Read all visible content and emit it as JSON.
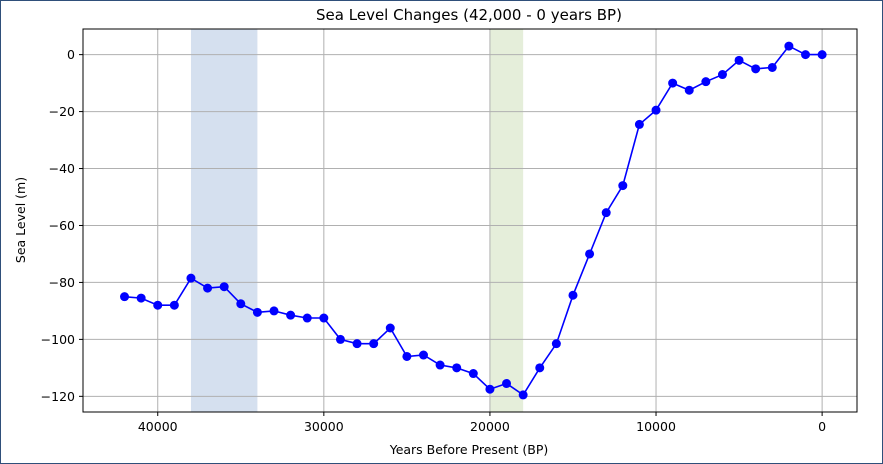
{
  "chart_data": {
    "type": "line",
    "title": "Sea Level Changes (42,000 - 0 years BP)",
    "xlabel": "Years Before Present (BP)",
    "ylabel": "Sea Level (m)",
    "x_axis_inverted": true,
    "xlim": [
      44500,
      -2100
    ],
    "ylim": [
      -125.5,
      9
    ],
    "xticks": [
      40000,
      30000,
      20000,
      10000,
      0
    ],
    "yticks": [
      0,
      -20,
      -40,
      -60,
      -80,
      -100,
      -120
    ],
    "grid": true,
    "legend": "none",
    "shaded_regions": [
      {
        "x_start": 38000,
        "x_end": 34000,
        "color": "#d5e0ef"
      },
      {
        "x_start": 20000,
        "x_end": 18000,
        "color": "#e5eeda"
      }
    ],
    "series": [
      {
        "color": "#0000ff",
        "marker": "circle",
        "x": [
          42000,
          41000,
          40000,
          39000,
          38000,
          37000,
          36000,
          35000,
          34000,
          33000,
          32000,
          31000,
          30000,
          29000,
          28000,
          27000,
          26000,
          25000,
          24000,
          23000,
          22000,
          21000,
          20000,
          19000,
          18000,
          17000,
          16000,
          15000,
          14000,
          13000,
          12000,
          11000,
          10000,
          9000,
          8000,
          7000,
          6000,
          5000,
          4000,
          3000,
          2000,
          1000,
          0
        ],
        "y": [
          -85,
          -85.5,
          -88,
          -88,
          -78.5,
          -82,
          -81.5,
          -87.5,
          -90.5,
          -90,
          -91.5,
          -92.5,
          -92.5,
          -100,
          -101.5,
          -101.5,
          -96,
          -106,
          -105.5,
          -109,
          -110,
          -112,
          -117.5,
          -115.5,
          -119.5,
          -110,
          -101.5,
          -84.5,
          -70,
          -55.5,
          -46,
          -24.5,
          -19.5,
          -10,
          -12.5,
          -9.5,
          -7,
          -2,
          -5,
          -4.5,
          3,
          0,
          0
        ]
      }
    ]
  }
}
